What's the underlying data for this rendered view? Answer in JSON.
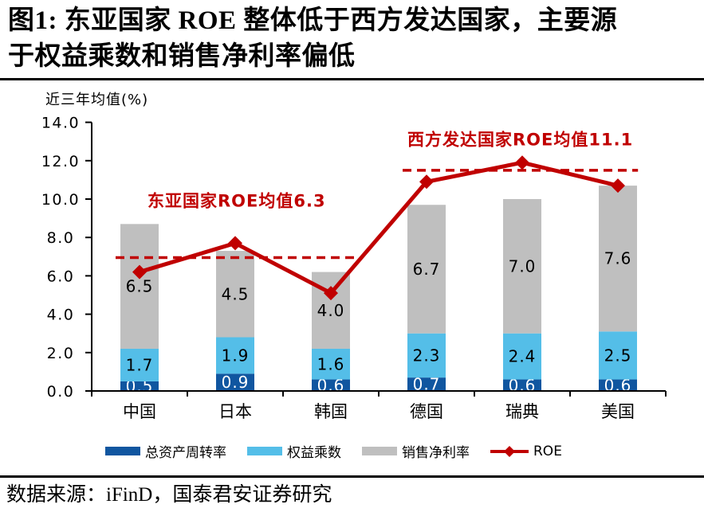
{
  "title": {
    "line1": "图1:  东亚国家 ROE 整体低于西方发达国家，主要源",
    "line2": "于权益乘数和销售净利率偏低"
  },
  "footer": {
    "source": "数据来源：iFinD，国泰君安证券研究"
  },
  "chart_data": {
    "type": "bar",
    "subtype": "stacked-bar-with-line",
    "title": "东亚国家 ROE 整体低于西方发达国家，主要源于权益乘数和销售净利率偏低",
    "ylabel": "近三年均值(%)",
    "xlabel": "",
    "ylim": [
      0,
      14
    ],
    "ytick_step": 2,
    "grid": false,
    "legend_position": "bottom",
    "accent_color": "#C00000",
    "axis_color": "#000000",
    "categories": [
      "中国",
      "日本",
      "韩国",
      "德国",
      "瑞典",
      "美国"
    ],
    "series": [
      {
        "name": "总资产周转率",
        "type": "bar",
        "color": "#1056A0",
        "label_color": "#FFFFFF",
        "values": [
          0.5,
          0.9,
          0.6,
          0.7,
          0.6,
          0.6
        ]
      },
      {
        "name": "权益乘数",
        "type": "bar",
        "color": "#54BEE8",
        "label_color": "#000000",
        "values": [
          1.7,
          1.9,
          1.6,
          2.3,
          2.4,
          2.5
        ]
      },
      {
        "name": "销售净利率",
        "type": "bar",
        "color": "#BFBFBF",
        "label_color": "#000000",
        "values": [
          6.5,
          4.5,
          4.0,
          6.7,
          7.0,
          7.6
        ]
      },
      {
        "name": "ROE",
        "type": "line",
        "color": "#C00000",
        "values": [
          6.2,
          7.7,
          5.1,
          10.9,
          11.9,
          10.7
        ]
      }
    ],
    "annotations": [
      {
        "text": "东亚国家ROE均值6.3",
        "mean": 6.3,
        "line_value": 6.95,
        "label_value": 9.6,
        "span_from": 0.25,
        "span_to": 2.78
      },
      {
        "text": "西方发达国家ROE均值11.1",
        "mean": 11.1,
        "line_value": 11.5,
        "label_value": 12.8,
        "span_from": 3.25,
        "span_to": 5.71
      }
    ]
  }
}
